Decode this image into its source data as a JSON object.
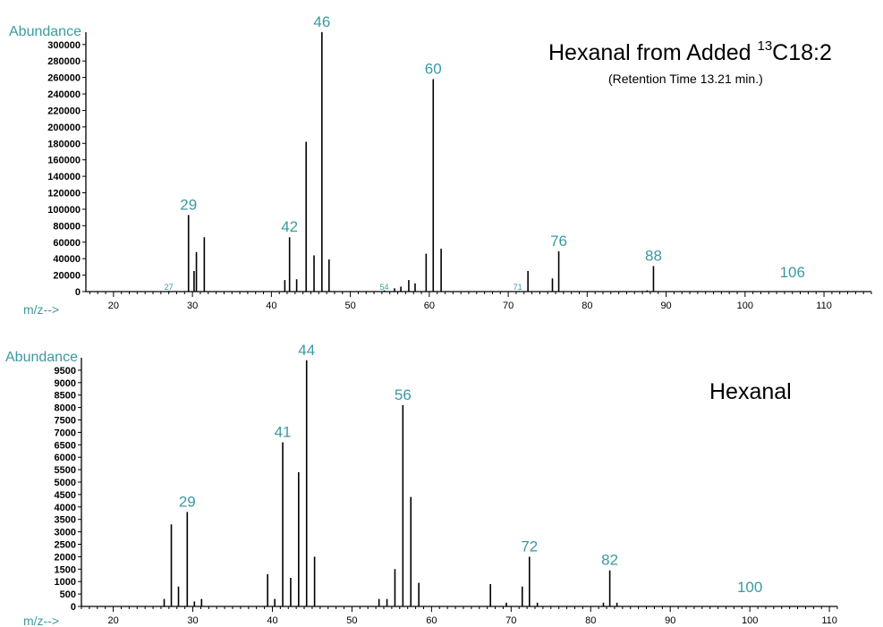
{
  "colors": {
    "label": "#3a9aa0",
    "bars": "#000000"
  },
  "chart_data": [
    {
      "type": "bar",
      "title": "Hexanal from Added ",
      "title_superscript": "13",
      "title_tail": "C18:2",
      "subtitle": "(Retention Time 13.21 min.)",
      "ylabel": "Abundance",
      "xlabel": "m/z-->",
      "xlim": [
        16.5,
        116
      ],
      "ylim": [
        0,
        315000
      ],
      "xticks": [
        20,
        30,
        40,
        50,
        60,
        70,
        80,
        90,
        100,
        110
      ],
      "yticks": [
        0,
        20000,
        40000,
        60000,
        80000,
        100000,
        120000,
        140000,
        160000,
        180000,
        200000,
        220000,
        240000,
        260000,
        280000,
        300000
      ],
      "grid": false,
      "peaks": [
        {
          "x": 27,
          "y": 800
        },
        {
          "x": 29.5,
          "y": 93000
        },
        {
          "x": 30.2,
          "y": 25000
        },
        {
          "x": 30.5,
          "y": 48000
        },
        {
          "x": 31.5,
          "y": 66000
        },
        {
          "x": 41.7,
          "y": 14000
        },
        {
          "x": 42.3,
          "y": 66000
        },
        {
          "x": 43.2,
          "y": 15000
        },
        {
          "x": 44.4,
          "y": 182000
        },
        {
          "x": 45.4,
          "y": 44000
        },
        {
          "x": 46.4,
          "y": 315000
        },
        {
          "x": 47.3,
          "y": 39000
        },
        {
          "x": 54.3,
          "y": 1500
        },
        {
          "x": 55.6,
          "y": 4000
        },
        {
          "x": 56.4,
          "y": 6000
        },
        {
          "x": 57.4,
          "y": 14000
        },
        {
          "x": 58.2,
          "y": 10000
        },
        {
          "x": 59.6,
          "y": 46000
        },
        {
          "x": 60.5,
          "y": 258000
        },
        {
          "x": 61.5,
          "y": 52000
        },
        {
          "x": 71.4,
          "y": 800
        },
        {
          "x": 72.5,
          "y": 25000
        },
        {
          "x": 75.6,
          "y": 16000
        },
        {
          "x": 76.4,
          "y": 49000
        },
        {
          "x": 87.6,
          "y": 1500
        },
        {
          "x": 88.4,
          "y": 31000
        }
      ],
      "peak_labels": [
        {
          "x": 29.5,
          "y": 93000,
          "text": "29"
        },
        {
          "x": 42.3,
          "y": 66000,
          "text": "42"
        },
        {
          "x": 46.4,
          "y": 315000,
          "text": "46"
        },
        {
          "x": 60.5,
          "y": 258000,
          "text": "60"
        },
        {
          "x": 76.4,
          "y": 49000,
          "text": "76"
        },
        {
          "x": 88.4,
          "y": 31000,
          "text": "88"
        },
        {
          "x": 106,
          "y": 0,
          "text": "106"
        }
      ],
      "minor_labels": [
        {
          "x": 27,
          "y": 0,
          "text": "27"
        },
        {
          "x": 54.3,
          "y": 0,
          "text": "54"
        },
        {
          "x": 71.2,
          "y": 0,
          "text": "71"
        }
      ]
    },
    {
      "type": "bar",
      "title": "Hexanal",
      "ylabel": "Abundance",
      "xlabel": "m/z-->",
      "xlim": [
        16,
        111
      ],
      "ylim": [
        0,
        10000
      ],
      "xticks": [
        20,
        30,
        40,
        50,
        60,
        70,
        80,
        90,
        100,
        110
      ],
      "yticks": [
        0,
        500,
        1000,
        1500,
        2000,
        2500,
        3000,
        3500,
        4000,
        4500,
        5000,
        5500,
        6000,
        6500,
        7000,
        7500,
        8000,
        8500,
        9000,
        9500
      ],
      "grid": false,
      "peaks": [
        {
          "x": 26.4,
          "y": 300
        },
        {
          "x": 27.3,
          "y": 3300
        },
        {
          "x": 28.2,
          "y": 800
        },
        {
          "x": 29.3,
          "y": 3800
        },
        {
          "x": 30.2,
          "y": 200
        },
        {
          "x": 31.1,
          "y": 300
        },
        {
          "x": 39.4,
          "y": 1300
        },
        {
          "x": 40.3,
          "y": 300
        },
        {
          "x": 41.3,
          "y": 6600
        },
        {
          "x": 42.3,
          "y": 1150
        },
        {
          "x": 43.3,
          "y": 5400
        },
        {
          "x": 44.3,
          "y": 9900
        },
        {
          "x": 45.3,
          "y": 2000
        },
        {
          "x": 53.4,
          "y": 300
        },
        {
          "x": 54.4,
          "y": 300
        },
        {
          "x": 55.4,
          "y": 1500
        },
        {
          "x": 56.4,
          "y": 8100
        },
        {
          "x": 57.4,
          "y": 4400
        },
        {
          "x": 58.4,
          "y": 950
        },
        {
          "x": 67.4,
          "y": 900
        },
        {
          "x": 69.4,
          "y": 150
        },
        {
          "x": 71.4,
          "y": 800
        },
        {
          "x": 72.3,
          "y": 2000
        },
        {
          "x": 73.3,
          "y": 150
        },
        {
          "x": 81.6,
          "y": 150
        },
        {
          "x": 82.4,
          "y": 1450
        },
        {
          "x": 83.3,
          "y": 150
        }
      ],
      "peak_labels": [
        {
          "x": 29.3,
          "y": 3800,
          "text": "29"
        },
        {
          "x": 41.3,
          "y": 6600,
          "text": "41"
        },
        {
          "x": 44.3,
          "y": 9900,
          "text": "44"
        },
        {
          "x": 56.4,
          "y": 8100,
          "text": "56"
        },
        {
          "x": 72.3,
          "y": 2000,
          "text": "72"
        },
        {
          "x": 82.4,
          "y": 1450,
          "text": "82"
        },
        {
          "x": 100,
          "y": 0,
          "text": "100"
        }
      ],
      "minor_labels": []
    }
  ]
}
